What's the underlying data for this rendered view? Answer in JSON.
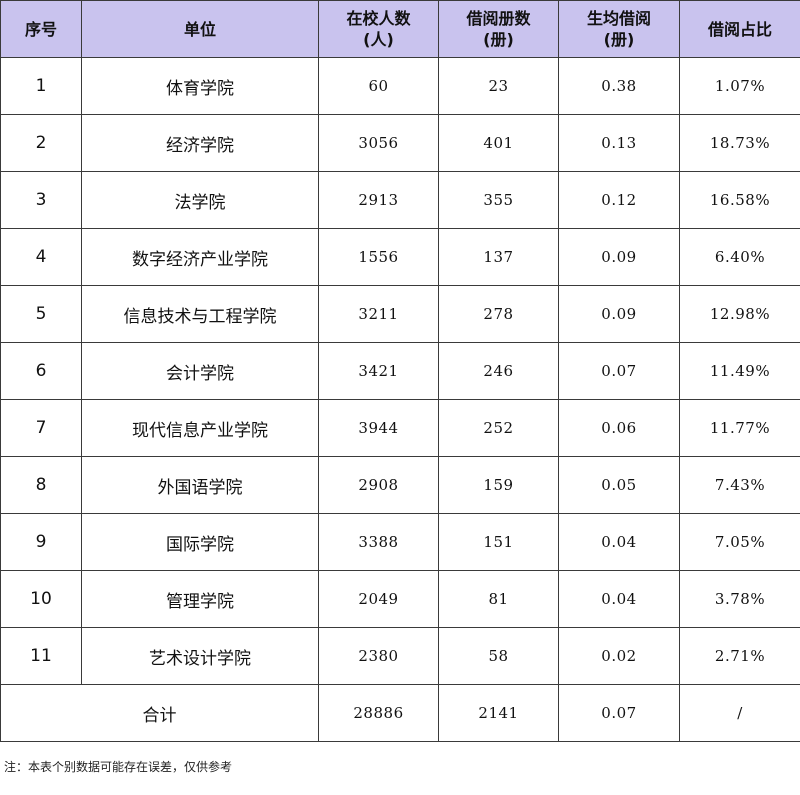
{
  "headers": [
    {
      "line1": "序号",
      "line2": ""
    },
    {
      "line1": "单位",
      "line2": ""
    },
    {
      "line1": "在校人数",
      "line2": "(人)"
    },
    {
      "line1": "借阅册数",
      "line2": "(册)"
    },
    {
      "line1": "生均借阅",
      "line2": "(册)"
    },
    {
      "line1": "借阅占比",
      "line2": ""
    }
  ],
  "rows": [
    {
      "index": "1",
      "unit": "体育学院",
      "students": "60",
      "borrowed": "23",
      "per_capita": "0.38",
      "share": "1.07%"
    },
    {
      "index": "2",
      "unit": "经济学院",
      "students": "3056",
      "borrowed": "401",
      "per_capita": "0.13",
      "share": "18.73%"
    },
    {
      "index": "3",
      "unit": "法学院",
      "students": "2913",
      "borrowed": "355",
      "per_capita": "0.12",
      "share": "16.58%"
    },
    {
      "index": "4",
      "unit": "数字经济产业学院",
      "students": "1556",
      "borrowed": "137",
      "per_capita": "0.09",
      "share": "6.40%"
    },
    {
      "index": "5",
      "unit": "信息技术与工程学院",
      "students": "3211",
      "borrowed": "278",
      "per_capita": "0.09",
      "share": "12.98%"
    },
    {
      "index": "6",
      "unit": "会计学院",
      "students": "3421",
      "borrowed": "246",
      "per_capita": "0.07",
      "share": "11.49%"
    },
    {
      "index": "7",
      "unit": "现代信息产业学院",
      "students": "3944",
      "borrowed": "252",
      "per_capita": "0.06",
      "share": "11.77%"
    },
    {
      "index": "8",
      "unit": "外国语学院",
      "students": "2908",
      "borrowed": "159",
      "per_capita": "0.05",
      "share": "7.43%"
    },
    {
      "index": "9",
      "unit": "国际学院",
      "students": "3388",
      "borrowed": "151",
      "per_capita": "0.04",
      "share": "7.05%"
    },
    {
      "index": "10",
      "unit": "管理学院",
      "students": "2049",
      "borrowed": "81",
      "per_capita": "0.04",
      "share": "3.78%"
    },
    {
      "index": "11",
      "unit": "艺术设计学院",
      "students": "2380",
      "borrowed": "58",
      "per_capita": "0.02",
      "share": "2.71%"
    }
  ],
  "total": {
    "label": "合计",
    "students": "28886",
    "borrowed": "2141",
    "per_capita": "0.07",
    "share": "/"
  },
  "footnote": "注：本表个别数据可能存在误差，仅供参考",
  "colors": {
    "header_bg": "#c9c3ee",
    "border": "#3a3a3a"
  }
}
